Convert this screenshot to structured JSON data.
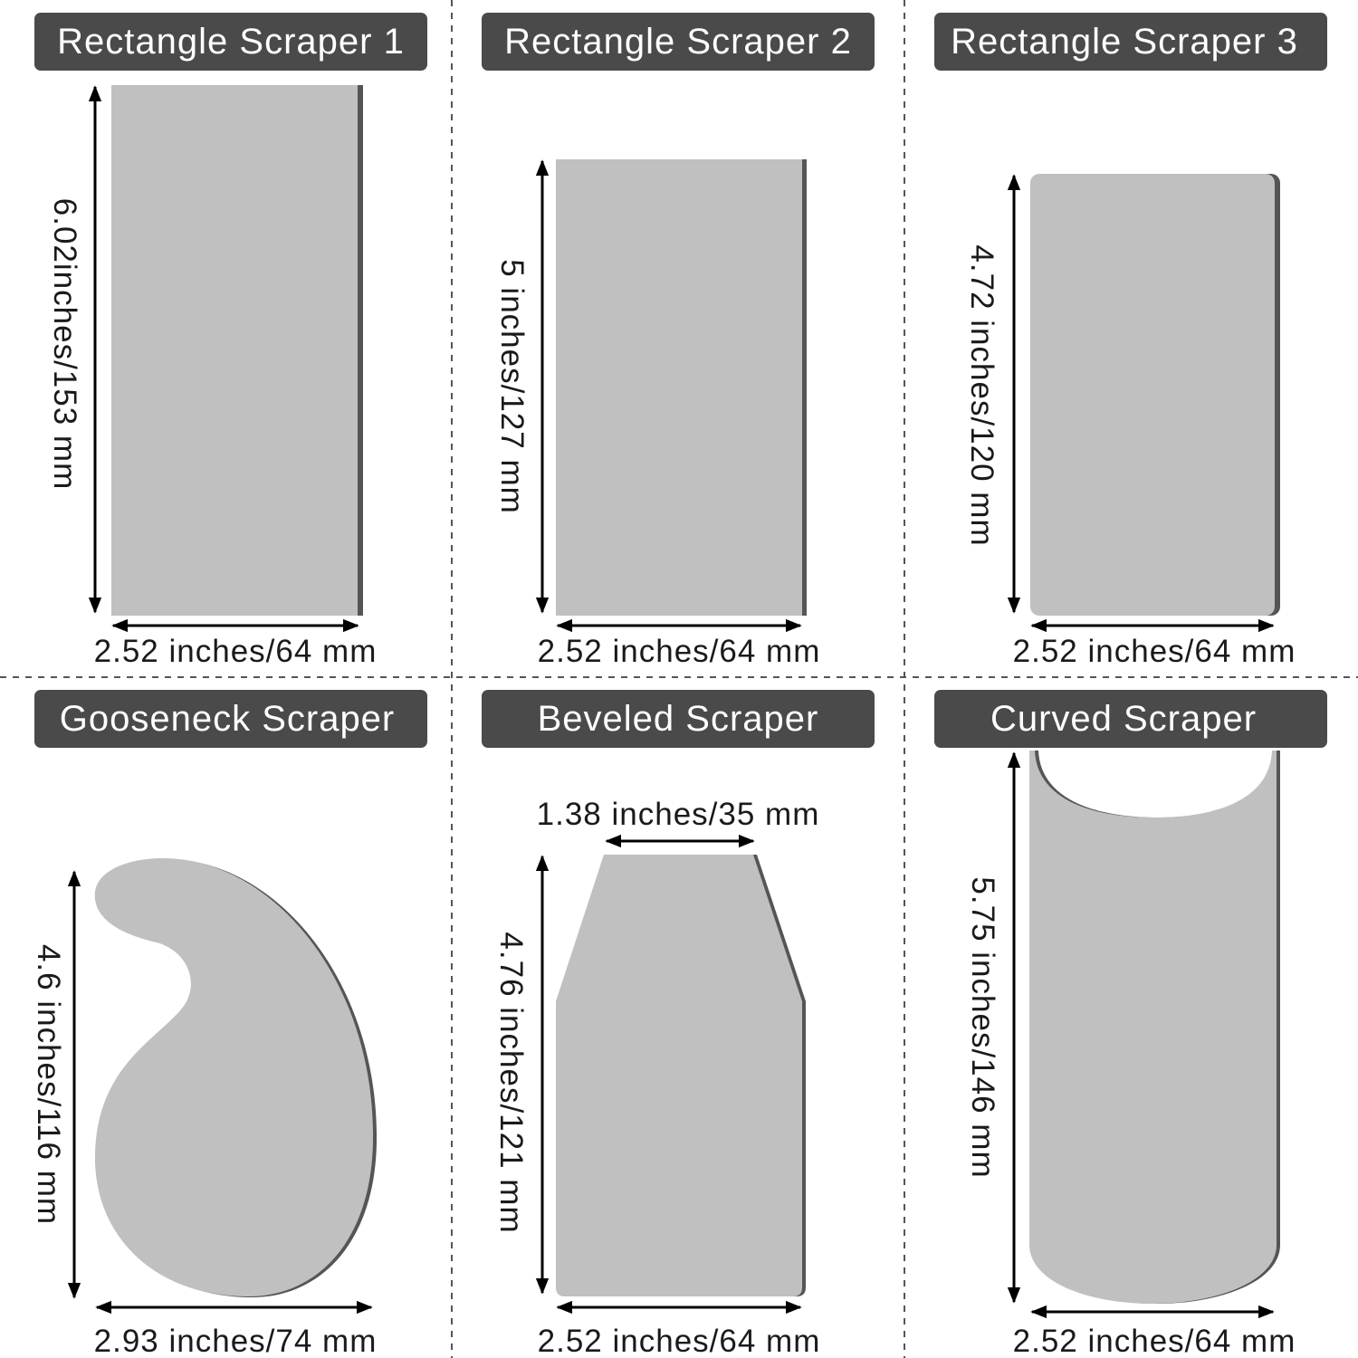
{
  "panels": [
    {
      "title": "Rectangle Scraper 1",
      "shape": "rectangle",
      "width_label": "2.52 inches/64 mm",
      "height_label": "6.02inches/153 mm"
    },
    {
      "title": "Rectangle Scraper 2",
      "shape": "rectangle",
      "width_label": "2.52 inches/64 mm",
      "height_label": "5 inches/127 mm"
    },
    {
      "title": "Rectangle Scraper 3",
      "shape": "rounded-rectangle",
      "width_label": "2.52 inches/64 mm",
      "height_label": "4.72 inches/120 mm"
    },
    {
      "title": "Gooseneck Scraper",
      "shape": "gooseneck",
      "width_label": "2.93 inches/74 mm",
      "height_label": "4.6 inches/116 mm"
    },
    {
      "title": "Beveled Scraper",
      "shape": "beveled",
      "width_label": "2.52 inches/64 mm",
      "height_label": "4.76 inches/121 mm",
      "top_label": "1.38 inches/35 mm"
    },
    {
      "title": "Curved Scraper",
      "shape": "curved",
      "width_label": "2.52 inches/64 mm",
      "height_label": "5.75 inches/146 mm"
    }
  ],
  "colors": {
    "badge": "#4a4a4a",
    "scraper_fill": "#c0c0c0",
    "scraper_edge": "#555555",
    "divider": "#555555"
  }
}
